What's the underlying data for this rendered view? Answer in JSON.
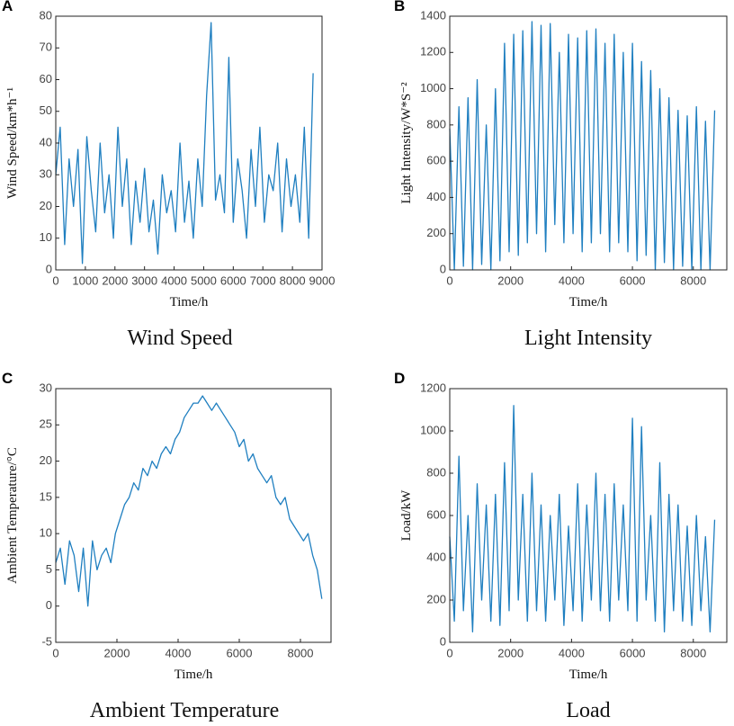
{
  "chart_data": [
    {
      "type": "line",
      "label": "A",
      "caption": "Wind Speed",
      "xlabel": "Time/h",
      "ylabel": "Wind Speed/km*h⁻¹",
      "color": "#1f7fc0",
      "xlim": [
        0,
        9000
      ],
      "xticks": [
        0,
        1000,
        2000,
        3000,
        4000,
        5000,
        6000,
        7000,
        8000,
        9000
      ],
      "ylim": [
        0,
        80
      ],
      "yticks": [
        0,
        10,
        20,
        30,
        40,
        50,
        60,
        70,
        80
      ],
      "x": [
        0,
        150,
        300,
        450,
        600,
        750,
        900,
        1050,
        1200,
        1350,
        1500,
        1650,
        1800,
        1950,
        2100,
        2250,
        2400,
        2550,
        2700,
        2850,
        3000,
        3150,
        3300,
        3450,
        3600,
        3750,
        3900,
        4050,
        4200,
        4350,
        4500,
        4650,
        4800,
        4950,
        5100,
        5250,
        5400,
        5550,
        5700,
        5850,
        6000,
        6150,
        6300,
        6450,
        6600,
        6750,
        6900,
        7050,
        7200,
        7350,
        7500,
        7650,
        7800,
        7950,
        8100,
        8250,
        8400,
        8550,
        8700
      ],
      "values": [
        30,
        45,
        8,
        35,
        20,
        38,
        2,
        42,
        25,
        12,
        40,
        18,
        30,
        10,
        45,
        20,
        35,
        8,
        28,
        15,
        32,
        12,
        22,
        5,
        30,
        18,
        25,
        12,
        40,
        15,
        28,
        10,
        35,
        20,
        55,
        78,
        22,
        30,
        18,
        67,
        15,
        35,
        25,
        10,
        38,
        20,
        45,
        15,
        30,
        25,
        40,
        12,
        35,
        20,
        30,
        15,
        45,
        10,
        62
      ]
    },
    {
      "type": "line",
      "label": "B",
      "caption": "Light Intensity",
      "xlabel": "Time/h",
      "ylabel": "Light Intensity/W*S⁻²",
      "color": "#1f7fc0",
      "xlim": [
        0,
        9100
      ],
      "xticks": [
        0,
        2000,
        4000,
        6000,
        8000
      ],
      "ylim": [
        0,
        1400
      ],
      "yticks": [
        0,
        200,
        400,
        600,
        800,
        1000,
        1200,
        1400
      ],
      "x": [
        0,
        150,
        300,
        450,
        600,
        750,
        900,
        1050,
        1200,
        1350,
        1500,
        1650,
        1800,
        1950,
        2100,
        2250,
        2400,
        2550,
        2700,
        2850,
        3000,
        3150,
        3300,
        3450,
        3600,
        3750,
        3900,
        4050,
        4200,
        4350,
        4500,
        4650,
        4800,
        4950,
        5100,
        5250,
        5400,
        5550,
        5700,
        5850,
        6000,
        6150,
        6300,
        6450,
        6600,
        6750,
        6900,
        7050,
        7200,
        7350,
        7500,
        7650,
        7800,
        7950,
        8100,
        8250,
        8400,
        8550,
        8700
      ],
      "values": [
        780,
        0,
        900,
        20,
        950,
        0,
        1050,
        30,
        800,
        0,
        1000,
        50,
        1250,
        100,
        1300,
        80,
        1320,
        150,
        1370,
        200,
        1350,
        100,
        1360,
        250,
        1200,
        150,
        1300,
        200,
        1280,
        100,
        1320,
        150,
        1330,
        200,
        1250,
        100,
        1300,
        150,
        1200,
        100,
        1250,
        50,
        1150,
        80,
        1100,
        0,
        1000,
        40,
        950,
        0,
        880,
        20,
        850,
        0,
        900,
        0,
        820,
        0,
        880
      ]
    },
    {
      "type": "line",
      "label": "C",
      "caption": "Ambient Temperature",
      "xlabel": "Time/h",
      "ylabel": "Ambient Temperature/°C",
      "color": "#1f7fc0",
      "xlim": [
        0,
        9000
      ],
      "xticks": [
        0,
        2000,
        4000,
        6000,
        8000
      ],
      "ylim": [
        -5,
        30
      ],
      "yticks": [
        -5,
        0,
        5,
        10,
        15,
        20,
        25,
        30
      ],
      "x": [
        0,
        150,
        300,
        450,
        600,
        750,
        900,
        1050,
        1200,
        1350,
        1500,
        1650,
        1800,
        1950,
        2100,
        2250,
        2400,
        2550,
        2700,
        2850,
        3000,
        3150,
        3300,
        3450,
        3600,
        3750,
        3900,
        4050,
        4200,
        4350,
        4500,
        4650,
        4800,
        4950,
        5100,
        5250,
        5400,
        5550,
        5700,
        5850,
        6000,
        6150,
        6300,
        6450,
        6600,
        6750,
        6900,
        7050,
        7200,
        7350,
        7500,
        7650,
        7800,
        7950,
        8100,
        8250,
        8400,
        8550,
        8700
      ],
      "values": [
        6,
        8,
        3,
        9,
        7,
        2,
        8,
        0,
        9,
        5,
        7,
        8,
        6,
        10,
        12,
        14,
        15,
        17,
        16,
        19,
        18,
        20,
        19,
        21,
        22,
        21,
        23,
        24,
        26,
        27,
        28,
        28,
        29,
        28,
        27,
        28,
        27,
        26,
        25,
        24,
        22,
        23,
        20,
        21,
        19,
        18,
        17,
        18,
        15,
        14,
        15,
        12,
        11,
        10,
        9,
        10,
        7,
        5,
        1
      ]
    },
    {
      "type": "line",
      "label": "D",
      "caption": "Load",
      "xlabel": "Time/h",
      "ylabel": "Load/kW",
      "color": "#1f7fc0",
      "xlim": [
        0,
        9100
      ],
      "xticks": [
        0,
        2000,
        4000,
        6000,
        8000
      ],
      "ylim": [
        0,
        1200
      ],
      "yticks": [
        0,
        200,
        400,
        600,
        800,
        1000,
        1200
      ],
      "x": [
        0,
        150,
        300,
        450,
        600,
        750,
        900,
        1050,
        1200,
        1350,
        1500,
        1650,
        1800,
        1950,
        2100,
        2250,
        2400,
        2550,
        2700,
        2850,
        3000,
        3150,
        3300,
        3450,
        3600,
        3750,
        3900,
        4050,
        4200,
        4350,
        4500,
        4650,
        4800,
        4950,
        5100,
        5250,
        5400,
        5550,
        5700,
        5850,
        6000,
        6150,
        6300,
        6450,
        6600,
        6750,
        6900,
        7050,
        7200,
        7350,
        7500,
        7650,
        7800,
        7950,
        8100,
        8250,
        8400,
        8550,
        8700
      ],
      "values": [
        500,
        100,
        880,
        150,
        600,
        50,
        750,
        200,
        650,
        100,
        700,
        80,
        850,
        150,
        1120,
        200,
        700,
        100,
        800,
        150,
        650,
        100,
        600,
        200,
        700,
        80,
        550,
        150,
        750,
        100,
        650,
        200,
        800,
        150,
        700,
        100,
        750,
        200,
        650,
        150,
        1060,
        100,
        1020,
        200,
        600,
        100,
        850,
        50,
        700,
        150,
        650,
        100,
        550,
        80,
        600,
        150,
        500,
        50,
        580
      ]
    }
  ]
}
